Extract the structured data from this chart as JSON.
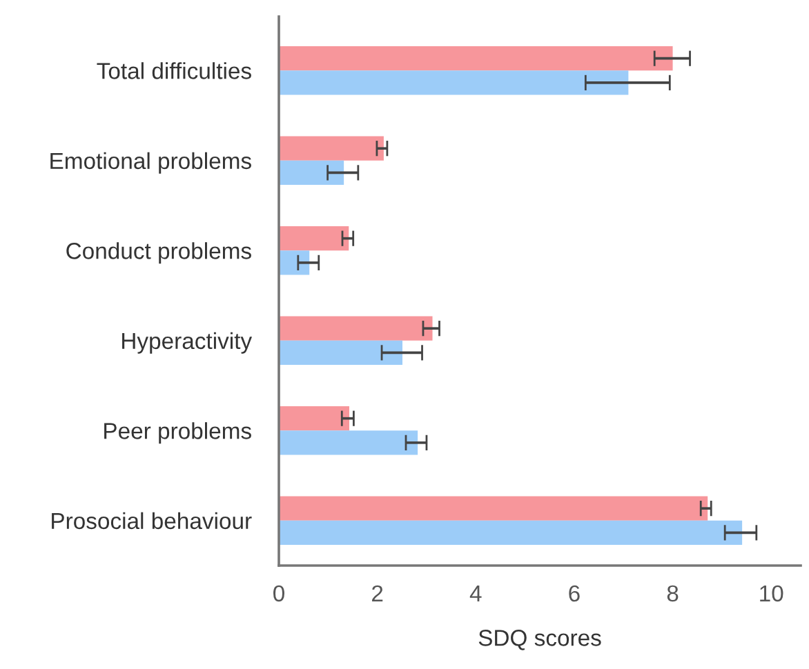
{
  "chart_data": {
    "type": "bar",
    "orientation": "horizontal",
    "xlabel": "SDQ scores",
    "categories": [
      "Total difficulties",
      "Emotional problems",
      "Conduct problems",
      "Hyperactivity",
      "Peer problems",
      "Prosocial behaviour"
    ],
    "series": [
      {
        "color": "#f7969b",
        "values": [
          8.0,
          2.13,
          1.42,
          3.12,
          1.43,
          8.71
        ],
        "errors": [
          [
            7.63,
            8.35
          ],
          [
            1.99,
            2.2
          ],
          [
            1.29,
            1.51
          ],
          [
            2.93,
            3.26
          ],
          [
            1.28,
            1.52
          ],
          [
            8.57,
            8.78
          ]
        ]
      },
      {
        "color": "#9cccf8",
        "values": [
          7.1,
          1.32,
          0.62,
          2.51,
          2.82,
          9.41
        ],
        "errors": [
          [
            6.23,
            7.94
          ],
          [
            0.99,
            1.61
          ],
          [
            0.39,
            0.81
          ],
          [
            2.09,
            2.91
          ],
          [
            2.58,
            3.0
          ],
          [
            9.06,
            9.7
          ]
        ]
      }
    ],
    "xlim": [
      0,
      10.6
    ],
    "xticks": [
      0,
      2,
      4,
      6,
      8,
      10
    ],
    "grid": false,
    "legend": false
  }
}
